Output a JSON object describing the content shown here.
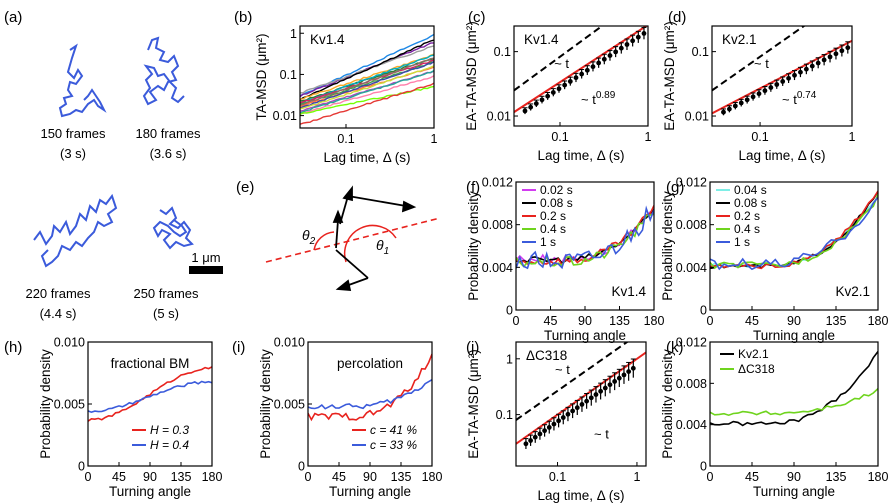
{
  "figure": {
    "panel_labels": [
      "(a)",
      "(b)",
      "(c)",
      "(d)",
      "(e)",
      "(f)",
      "(g)",
      "(h)",
      "(i)",
      "(j)",
      "(k)"
    ],
    "colors": {
      "blue": "#3b5bdb",
      "red": "#e8231e",
      "black": "#000000",
      "green": "#6fd41e",
      "magenta": "#d23cf0",
      "cyan": "#7eeee6"
    },
    "trajectories": [
      {
        "frames": "150 frames",
        "duration": "(3 s)"
      },
      {
        "frames": "180 frames",
        "duration": "(3.6 s)"
      },
      {
        "frames": "220 frames",
        "duration": "(4.4 s)"
      },
      {
        "frames": "250 frames",
        "duration": "(5 s)"
      }
    ],
    "scale_bar": "1 μm",
    "angle_labels": {
      "theta2": "θ",
      "theta2_sub": "2",
      "theta1": "θ",
      "theta1_sub": "1"
    }
  },
  "chart_data": [
    {
      "id": "b",
      "type": "line",
      "label": "Kv1.4",
      "ylabel": "TA-MSD (μm²)",
      "xlabel": "Lag time, Δ (s)",
      "xscale": "log",
      "yscale": "log",
      "xlim": [
        0.03,
        1
      ],
      "ylim": [
        0.005,
        1.5
      ],
      "xticks": [
        {
          "v": 0.1,
          "t": "0.1"
        },
        {
          "v": 1,
          "t": "1"
        }
      ],
      "yticks": [
        {
          "v": 0.01,
          "t": "0.01"
        },
        {
          "v": 0.1,
          "t": "0.1"
        },
        {
          "v": 1,
          "t": "1"
        }
      ],
      "series": [
        {
          "color": "#1e88e5",
          "start": 0.03,
          "end": 0.9
        },
        {
          "color": "#7b1fa2",
          "start": 0.03,
          "end": 0.6
        },
        {
          "color": "#9e9e9e",
          "start": 0.035,
          "end": 0.5
        },
        {
          "color": "#000000",
          "start": 0.025,
          "end": 0.7
        },
        {
          "color": "#f9a825",
          "start": 0.025,
          "end": 0.3
        },
        {
          "color": "#2e7d32",
          "start": 0.022,
          "end": 0.25
        },
        {
          "color": "#00acc1",
          "start": 0.02,
          "end": 0.3
        },
        {
          "color": "#d81b60",
          "start": 0.02,
          "end": 0.22
        },
        {
          "color": "#43a047",
          "start": 0.018,
          "end": 0.2
        },
        {
          "color": "#8d6e63",
          "start": 0.018,
          "end": 0.25
        },
        {
          "color": "#ff7043",
          "start": 0.017,
          "end": 0.15
        },
        {
          "color": "#3949ab",
          "start": 0.015,
          "end": 0.2
        },
        {
          "color": "#cddc39",
          "start": 0.014,
          "end": 0.16
        },
        {
          "color": "#ab47bc",
          "start": 0.013,
          "end": 0.12
        },
        {
          "color": "#26a69a",
          "start": 0.012,
          "end": 0.12
        },
        {
          "color": "#ff80ab",
          "start": 0.011,
          "end": 0.09
        },
        {
          "color": "#76ff03",
          "start": 0.011,
          "end": 0.05
        },
        {
          "color": "#e53935",
          "start": 0.006,
          "end": 0.06
        }
      ]
    },
    {
      "id": "c",
      "type": "scatter",
      "label": "Kv1.4",
      "ylabel": "EA-TA-MSD (μm²)",
      "xlabel": "Lag time, Δ (s)",
      "xscale": "log",
      "yscale": "log",
      "xlim": [
        0.03,
        1
      ],
      "ylim": [
        0.007,
        0.25
      ],
      "xticks": [
        {
          "v": 0.1,
          "t": "0.1"
        },
        {
          "v": 1,
          "t": "1"
        }
      ],
      "yticks": [
        {
          "v": 0.01,
          "t": "0.01"
        },
        {
          "v": 0.1,
          "t": "0.1"
        }
      ],
      "points": {
        "x0": 0.04,
        "x1": 0.9,
        "n": 22,
        "y0": 0.012,
        "alpha": 0.89,
        "err": 0.2
      },
      "fit": {
        "y_at_x0": 0.0115,
        "alpha": 0.89
      },
      "ref": {
        "y_at_x0": 0.025,
        "alpha": 1
      },
      "ref_label": "~ t",
      "fit_label": "~ t",
      "fit_exponent": "0.89"
    },
    {
      "id": "d",
      "type": "scatter",
      "label": "Kv2.1",
      "ylabel": "EA-TA-MSD (μm²)",
      "xlabel": "Lag time, Δ (s)",
      "xscale": "log",
      "yscale": "log",
      "xlim": [
        0.03,
        1
      ],
      "ylim": [
        0.007,
        0.25
      ],
      "xticks": [
        {
          "v": 0.1,
          "t": "0.1"
        },
        {
          "v": 1,
          "t": "1"
        }
      ],
      "yticks": [
        {
          "v": 0.01,
          "t": "0.01"
        },
        {
          "v": 0.1,
          "t": "0.1"
        }
      ],
      "points": {
        "x0": 0.04,
        "x1": 0.9,
        "n": 22,
        "y0": 0.0115,
        "alpha": 0.74,
        "err": 0.2
      },
      "fit": {
        "y_at_x0": 0.011,
        "alpha": 0.74
      },
      "ref": {
        "y_at_x0": 0.025,
        "alpha": 1
      },
      "ref_label": "~ t",
      "fit_label": "~ t",
      "fit_exponent": "0.74"
    },
    {
      "id": "f",
      "type": "line",
      "label": "Kv1.4",
      "ylabel": "Probability density",
      "xlabel": "Turning angle",
      "xlim": [
        0,
        180
      ],
      "ylim": [
        0,
        0.012
      ],
      "xticks": [
        {
          "v": 0,
          "t": "0"
        },
        {
          "v": 45,
          "t": "45"
        },
        {
          "v": 90,
          "t": "90"
        },
        {
          "v": 135,
          "t": "135"
        },
        {
          "v": 180,
          "t": "180"
        }
      ],
      "yticks": [
        {
          "v": 0,
          "t": "0"
        },
        {
          "v": 0.004,
          "t": "0.004"
        },
        {
          "v": 0.008,
          "t": "0.008"
        },
        {
          "v": 0.012,
          "t": "0.012"
        }
      ],
      "legend": [
        "0.02 s",
        "0.08 s",
        "0.2 s",
        "0.4 s",
        "1 s"
      ],
      "series": [
        {
          "name": "0.02 s",
          "color": "#d23cf0",
          "base": 0.0048,
          "peak": 0.0092,
          "noise": 0.0004
        },
        {
          "name": "0.08 s",
          "color": "#000000",
          "base": 0.0047,
          "peak": 0.0094,
          "noise": 0.0003
        },
        {
          "name": "0.2 s",
          "color": "#e8231e",
          "base": 0.0046,
          "peak": 0.0096,
          "noise": 0.0004
        },
        {
          "name": "0.4 s",
          "color": "#6fd41e",
          "base": 0.0045,
          "peak": 0.0093,
          "noise": 0.0005
        },
        {
          "name": "1 s",
          "color": "#3b5bdb",
          "base": 0.0046,
          "peak": 0.0095,
          "noise": 0.0009
        }
      ]
    },
    {
      "id": "g",
      "type": "line",
      "label": "Kv2.1",
      "ylabel": "Probability density",
      "xlabel": "Turning angle",
      "xlim": [
        0,
        180
      ],
      "ylim": [
        0,
        0.012
      ],
      "xticks": [
        {
          "v": 0,
          "t": "0"
        },
        {
          "v": 45,
          "t": "45"
        },
        {
          "v": 90,
          "t": "90"
        },
        {
          "v": 135,
          "t": "135"
        },
        {
          "v": 180,
          "t": "180"
        }
      ],
      "yticks": [
        {
          "v": 0,
          "t": "0"
        },
        {
          "v": 0.004,
          "t": "0.004"
        },
        {
          "v": 0.008,
          "t": "0.008"
        },
        {
          "v": 0.012,
          "t": "0.012"
        }
      ],
      "legend": [
        "0.04 s",
        "0.08 s",
        "0.2 s",
        "0.4 s",
        "1 s"
      ],
      "series": [
        {
          "name": "0.04 s",
          "color": "#7eeee6",
          "base": 0.0042,
          "peak": 0.0108,
          "noise": 0.0002
        },
        {
          "name": "0.08 s",
          "color": "#000000",
          "base": 0.0041,
          "peak": 0.011,
          "noise": 0.0002
        },
        {
          "name": "0.2 s",
          "color": "#e8231e",
          "base": 0.0041,
          "peak": 0.0112,
          "noise": 0.0002
        },
        {
          "name": "0.4 s",
          "color": "#6fd41e",
          "base": 0.0042,
          "peak": 0.0106,
          "noise": 0.0003
        },
        {
          "name": "1 s",
          "color": "#3b5bdb",
          "base": 0.0043,
          "peak": 0.0105,
          "noise": 0.0005
        }
      ]
    },
    {
      "id": "h",
      "type": "line",
      "label": "fractional BM",
      "ylabel": "Probability density",
      "xlabel": "Turning angle",
      "xlim": [
        0,
        180
      ],
      "ylim": [
        0,
        0.01
      ],
      "xticks": [
        {
          "v": 0,
          "t": "0"
        },
        {
          "v": 45,
          "t": "45"
        },
        {
          "v": 90,
          "t": "90"
        },
        {
          "v": 135,
          "t": "135"
        },
        {
          "v": 180,
          "t": "180"
        }
      ],
      "yticks": [
        {
          "v": 0,
          "t": "0"
        },
        {
          "v": 0.005,
          "t": "0.005"
        },
        {
          "v": 0.01,
          "t": "0.010"
        }
      ],
      "legend": [
        "H = 0.3",
        "H = 0.4"
      ],
      "series": [
        {
          "name": "H = 0.3",
          "color": "#e8231e",
          "kind": "sig",
          "y0": 0.0037,
          "y1": 0.0079,
          "noise": 0.0001
        },
        {
          "name": "H = 0.4",
          "color": "#3b5bdb",
          "kind": "sig",
          "y0": 0.0044,
          "y1": 0.0068,
          "noise": 0.0001
        }
      ]
    },
    {
      "id": "i",
      "type": "line",
      "label": "percolation",
      "ylabel": "Probability density",
      "xlabel": "Turning angle",
      "xlim": [
        0,
        180
      ],
      "ylim": [
        0,
        0.01
      ],
      "xticks": [
        {
          "v": 0,
          "t": "0"
        },
        {
          "v": 45,
          "t": "45"
        },
        {
          "v": 90,
          "t": "90"
        },
        {
          "v": 135,
          "t": "135"
        },
        {
          "v": 180,
          "t": "180"
        }
      ],
      "yticks": [
        {
          "v": 0,
          "t": "0"
        },
        {
          "v": 0.005,
          "t": "0.005"
        },
        {
          "v": 0.01,
          "t": "0.010"
        }
      ],
      "legend": [
        "c = 41 %",
        "c = 33 %"
      ],
      "series": [
        {
          "name": "c = 41 %",
          "color": "#e8231e",
          "base": 0.004,
          "peak": 0.0088,
          "noise": 0.0003
        },
        {
          "name": "c = 33 %",
          "color": "#3b5bdb",
          "base": 0.0048,
          "peak": 0.007,
          "noise": 0.0002
        }
      ]
    },
    {
      "id": "j",
      "type": "scatter",
      "label": "ΔC318",
      "ylabel": "EA-TA-MSD (μm²)",
      "xlabel": "Lag time, Δ (s)",
      "xscale": "log",
      "yscale": "log",
      "xlim": [
        0.03,
        1.3
      ],
      "ylim": [
        0.012,
        2
      ],
      "xticks": [
        {
          "v": 0.1,
          "t": "0.1"
        },
        {
          "v": 1,
          "t": "1"
        }
      ],
      "yticks": [
        {
          "v": 0.1,
          "t": "0.1"
        },
        {
          "v": 1,
          "t": "1"
        }
      ],
      "points": {
        "x0": 0.04,
        "x1": 0.9,
        "n": 24,
        "y0": 0.03,
        "alpha": 1.0,
        "err": 0.4
      },
      "fit": {
        "y_at_x0": 0.03,
        "alpha": 1.0
      },
      "ref": {
        "y_at_x0": 0.08,
        "alpha": 1.0
      },
      "ref_label": "~ t",
      "fit_label": "~ t",
      "fit_exponent": ""
    },
    {
      "id": "k",
      "type": "line",
      "label": "",
      "ylabel": "Probability density",
      "xlabel": "Turning angle",
      "xlim": [
        0,
        180
      ],
      "ylim": [
        0,
        0.012
      ],
      "xticks": [
        {
          "v": 0,
          "t": "0"
        },
        {
          "v": 45,
          "t": "45"
        },
        {
          "v": 90,
          "t": "90"
        },
        {
          "v": 135,
          "t": "135"
        },
        {
          "v": 180,
          "t": "180"
        }
      ],
      "yticks": [
        {
          "v": 0,
          "t": "0"
        },
        {
          "v": 0.004,
          "t": "0.004"
        },
        {
          "v": 0.008,
          "t": "0.008"
        },
        {
          "v": 0.012,
          "t": "0.012"
        }
      ],
      "legend": [
        "Kv2.1",
        "ΔC318"
      ],
      "series": [
        {
          "name": "Kv2.1",
          "color": "#000000",
          "base": 0.0041,
          "peak": 0.011,
          "noise": 0.0002
        },
        {
          "name": "ΔC318",
          "color": "#6fd41e",
          "base": 0.0051,
          "peak": 0.0073,
          "noise": 0.0002
        }
      ]
    }
  ]
}
